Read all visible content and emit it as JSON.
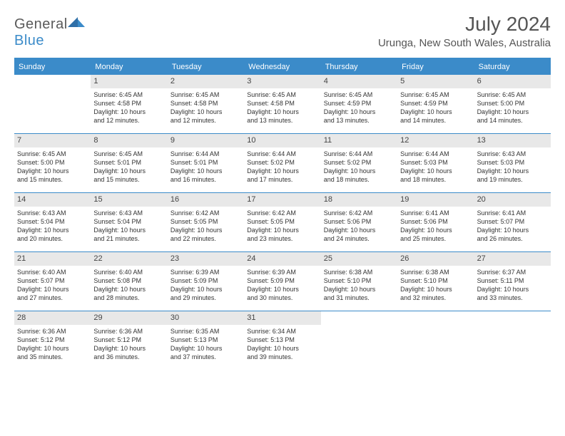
{
  "brand": {
    "general": "General",
    "blue": "Blue"
  },
  "title": "July 2024",
  "location": "Urunga, New South Wales, Australia",
  "colors": {
    "accent": "#3b8bc9",
    "header_text": "#555555",
    "body_text": "#333333",
    "daynum_bg": "#e8e8e8",
    "background": "#ffffff"
  },
  "layout": {
    "columns": 7,
    "rows": 6
  },
  "dow": [
    "Sunday",
    "Monday",
    "Tuesday",
    "Wednesday",
    "Thursday",
    "Friday",
    "Saturday"
  ],
  "days": [
    {
      "n": "",
      "blank": true
    },
    {
      "n": "1",
      "sr": "Sunrise: 6:45 AM",
      "ss": "Sunset: 4:58 PM",
      "d1": "Daylight: 10 hours",
      "d2": "and 12 minutes."
    },
    {
      "n": "2",
      "sr": "Sunrise: 6:45 AM",
      "ss": "Sunset: 4:58 PM",
      "d1": "Daylight: 10 hours",
      "d2": "and 12 minutes."
    },
    {
      "n": "3",
      "sr": "Sunrise: 6:45 AM",
      "ss": "Sunset: 4:58 PM",
      "d1": "Daylight: 10 hours",
      "d2": "and 13 minutes."
    },
    {
      "n": "4",
      "sr": "Sunrise: 6:45 AM",
      "ss": "Sunset: 4:59 PM",
      "d1": "Daylight: 10 hours",
      "d2": "and 13 minutes."
    },
    {
      "n": "5",
      "sr": "Sunrise: 6:45 AM",
      "ss": "Sunset: 4:59 PM",
      "d1": "Daylight: 10 hours",
      "d2": "and 14 minutes."
    },
    {
      "n": "6",
      "sr": "Sunrise: 6:45 AM",
      "ss": "Sunset: 5:00 PM",
      "d1": "Daylight: 10 hours",
      "d2": "and 14 minutes."
    },
    {
      "n": "7",
      "sr": "Sunrise: 6:45 AM",
      "ss": "Sunset: 5:00 PM",
      "d1": "Daylight: 10 hours",
      "d2": "and 15 minutes."
    },
    {
      "n": "8",
      "sr": "Sunrise: 6:45 AM",
      "ss": "Sunset: 5:01 PM",
      "d1": "Daylight: 10 hours",
      "d2": "and 15 minutes."
    },
    {
      "n": "9",
      "sr": "Sunrise: 6:44 AM",
      "ss": "Sunset: 5:01 PM",
      "d1": "Daylight: 10 hours",
      "d2": "and 16 minutes."
    },
    {
      "n": "10",
      "sr": "Sunrise: 6:44 AM",
      "ss": "Sunset: 5:02 PM",
      "d1": "Daylight: 10 hours",
      "d2": "and 17 minutes."
    },
    {
      "n": "11",
      "sr": "Sunrise: 6:44 AM",
      "ss": "Sunset: 5:02 PM",
      "d1": "Daylight: 10 hours",
      "d2": "and 18 minutes."
    },
    {
      "n": "12",
      "sr": "Sunrise: 6:44 AM",
      "ss": "Sunset: 5:03 PM",
      "d1": "Daylight: 10 hours",
      "d2": "and 18 minutes."
    },
    {
      "n": "13",
      "sr": "Sunrise: 6:43 AM",
      "ss": "Sunset: 5:03 PM",
      "d1": "Daylight: 10 hours",
      "d2": "and 19 minutes."
    },
    {
      "n": "14",
      "sr": "Sunrise: 6:43 AM",
      "ss": "Sunset: 5:04 PM",
      "d1": "Daylight: 10 hours",
      "d2": "and 20 minutes."
    },
    {
      "n": "15",
      "sr": "Sunrise: 6:43 AM",
      "ss": "Sunset: 5:04 PM",
      "d1": "Daylight: 10 hours",
      "d2": "and 21 minutes."
    },
    {
      "n": "16",
      "sr": "Sunrise: 6:42 AM",
      "ss": "Sunset: 5:05 PM",
      "d1": "Daylight: 10 hours",
      "d2": "and 22 minutes."
    },
    {
      "n": "17",
      "sr": "Sunrise: 6:42 AM",
      "ss": "Sunset: 5:05 PM",
      "d1": "Daylight: 10 hours",
      "d2": "and 23 minutes."
    },
    {
      "n": "18",
      "sr": "Sunrise: 6:42 AM",
      "ss": "Sunset: 5:06 PM",
      "d1": "Daylight: 10 hours",
      "d2": "and 24 minutes."
    },
    {
      "n": "19",
      "sr": "Sunrise: 6:41 AM",
      "ss": "Sunset: 5:06 PM",
      "d1": "Daylight: 10 hours",
      "d2": "and 25 minutes."
    },
    {
      "n": "20",
      "sr": "Sunrise: 6:41 AM",
      "ss": "Sunset: 5:07 PM",
      "d1": "Daylight: 10 hours",
      "d2": "and 26 minutes."
    },
    {
      "n": "21",
      "sr": "Sunrise: 6:40 AM",
      "ss": "Sunset: 5:07 PM",
      "d1": "Daylight: 10 hours",
      "d2": "and 27 minutes."
    },
    {
      "n": "22",
      "sr": "Sunrise: 6:40 AM",
      "ss": "Sunset: 5:08 PM",
      "d1": "Daylight: 10 hours",
      "d2": "and 28 minutes."
    },
    {
      "n": "23",
      "sr": "Sunrise: 6:39 AM",
      "ss": "Sunset: 5:09 PM",
      "d1": "Daylight: 10 hours",
      "d2": "and 29 minutes."
    },
    {
      "n": "24",
      "sr": "Sunrise: 6:39 AM",
      "ss": "Sunset: 5:09 PM",
      "d1": "Daylight: 10 hours",
      "d2": "and 30 minutes."
    },
    {
      "n": "25",
      "sr": "Sunrise: 6:38 AM",
      "ss": "Sunset: 5:10 PM",
      "d1": "Daylight: 10 hours",
      "d2": "and 31 minutes."
    },
    {
      "n": "26",
      "sr": "Sunrise: 6:38 AM",
      "ss": "Sunset: 5:10 PM",
      "d1": "Daylight: 10 hours",
      "d2": "and 32 minutes."
    },
    {
      "n": "27",
      "sr": "Sunrise: 6:37 AM",
      "ss": "Sunset: 5:11 PM",
      "d1": "Daylight: 10 hours",
      "d2": "and 33 minutes."
    },
    {
      "n": "28",
      "sr": "Sunrise: 6:36 AM",
      "ss": "Sunset: 5:12 PM",
      "d1": "Daylight: 10 hours",
      "d2": "and 35 minutes."
    },
    {
      "n": "29",
      "sr": "Sunrise: 6:36 AM",
      "ss": "Sunset: 5:12 PM",
      "d1": "Daylight: 10 hours",
      "d2": "and 36 minutes."
    },
    {
      "n": "30",
      "sr": "Sunrise: 6:35 AM",
      "ss": "Sunset: 5:13 PM",
      "d1": "Daylight: 10 hours",
      "d2": "and 37 minutes."
    },
    {
      "n": "31",
      "sr": "Sunrise: 6:34 AM",
      "ss": "Sunset: 5:13 PM",
      "d1": "Daylight: 10 hours",
      "d2": "and 39 minutes."
    },
    {
      "n": "",
      "blank": true
    },
    {
      "n": "",
      "blank": true
    },
    {
      "n": "",
      "blank": true
    }
  ]
}
